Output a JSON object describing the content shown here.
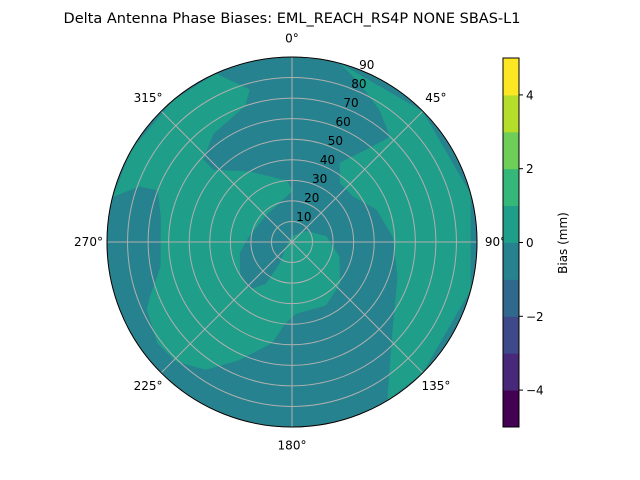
{
  "chart_data": {
    "type": "heatmap",
    "projection": "polar",
    "title": "Delta Antenna Phase Biases: EML_REACH_RS4P  NONE SBAS-L1",
    "theta_direction": "clockwise",
    "theta_zero": "north",
    "theta_ticks": [
      "0°",
      "45°",
      "90°",
      "135°",
      "180°",
      "225°",
      "270°",
      "315°"
    ],
    "theta_tick_values": [
      0,
      45,
      90,
      135,
      180,
      225,
      270,
      315
    ],
    "r_ticks": [
      "10",
      "20",
      "30",
      "40",
      "50",
      "60",
      "70",
      "80",
      "90"
    ],
    "r_tick_values": [
      10,
      20,
      30,
      40,
      50,
      60,
      70,
      80,
      90
    ],
    "r_range": [
      0,
      90
    ],
    "r_label_angle": 22.5,
    "grid": true,
    "background_band": [
      -1,
      0
    ],
    "regions": [
      {
        "band": [
          0,
          1
        ],
        "polygon_az_r": [
          [
            15,
            90
          ],
          [
            45,
            90
          ],
          [
            75,
            90
          ],
          [
            105,
            90
          ],
          [
            135,
            90
          ],
          [
            149,
            90
          ],
          [
            130,
            64
          ],
          [
            108,
            54
          ],
          [
            87,
            49
          ],
          [
            69,
            44
          ],
          [
            53,
            37
          ],
          [
            39,
            37
          ],
          [
            31,
            45
          ],
          [
            39,
            58
          ],
          [
            43,
            70
          ],
          [
            33.5,
            77
          ],
          [
            23,
            84
          ]
        ]
      },
      {
        "band": [
          0,
          1
        ],
        "polygon_az_r": [
          [
            335.7,
            90
          ],
          [
            320,
            90
          ],
          [
            300,
            90
          ],
          [
            284,
            90
          ],
          [
            290,
            79
          ],
          [
            291,
            70
          ],
          [
            281,
            65
          ],
          [
            259.5,
            65
          ],
          [
            249,
            74
          ],
          [
            245,
            78
          ],
          [
            233,
            82
          ],
          [
            224,
            81
          ],
          [
            214,
            75
          ],
          [
            204,
            63
          ],
          [
            191,
            50
          ],
          [
            185,
            40
          ],
          [
            176.5,
            35
          ],
          [
            151.9,
            35
          ],
          [
            130.7,
            31
          ],
          [
            106.7,
            24
          ],
          [
            80.6,
            17
          ],
          [
            53.3,
            9
          ],
          [
            0,
            3
          ],
          [
            224,
            5
          ],
          [
            210,
            12
          ],
          [
            212,
            24
          ],
          [
            222,
            31
          ],
          [
            237,
            30
          ],
          [
            258,
            26
          ],
          [
            278,
            21
          ],
          [
            315,
            18
          ],
          [
            342.5,
            20
          ],
          [
            1,
            25
          ],
          [
            355,
            30
          ],
          [
            329,
            40
          ],
          [
            312.5,
            52
          ],
          [
            313,
            59
          ],
          [
            324,
            65
          ],
          [
            341,
            70
          ],
          [
            344.5,
            77
          ]
        ]
      }
    ],
    "colorbar": {
      "label": "Bias (mm)",
      "range": [
        -5,
        5
      ],
      "levels": [
        -5,
        -4,
        -3,
        -2,
        -1,
        0,
        1,
        2,
        3,
        4,
        5
      ],
      "colors": [
        "#440154",
        "#482878",
        "#3e4989",
        "#31688e",
        "#26828e",
        "#1f9e89",
        "#35b779",
        "#6ece58",
        "#b5de2b",
        "#fde725"
      ],
      "ticks": [
        "−4",
        "−2",
        "0",
        "2",
        "4"
      ],
      "tick_values": [
        -4,
        -2,
        0,
        2,
        4
      ]
    }
  }
}
